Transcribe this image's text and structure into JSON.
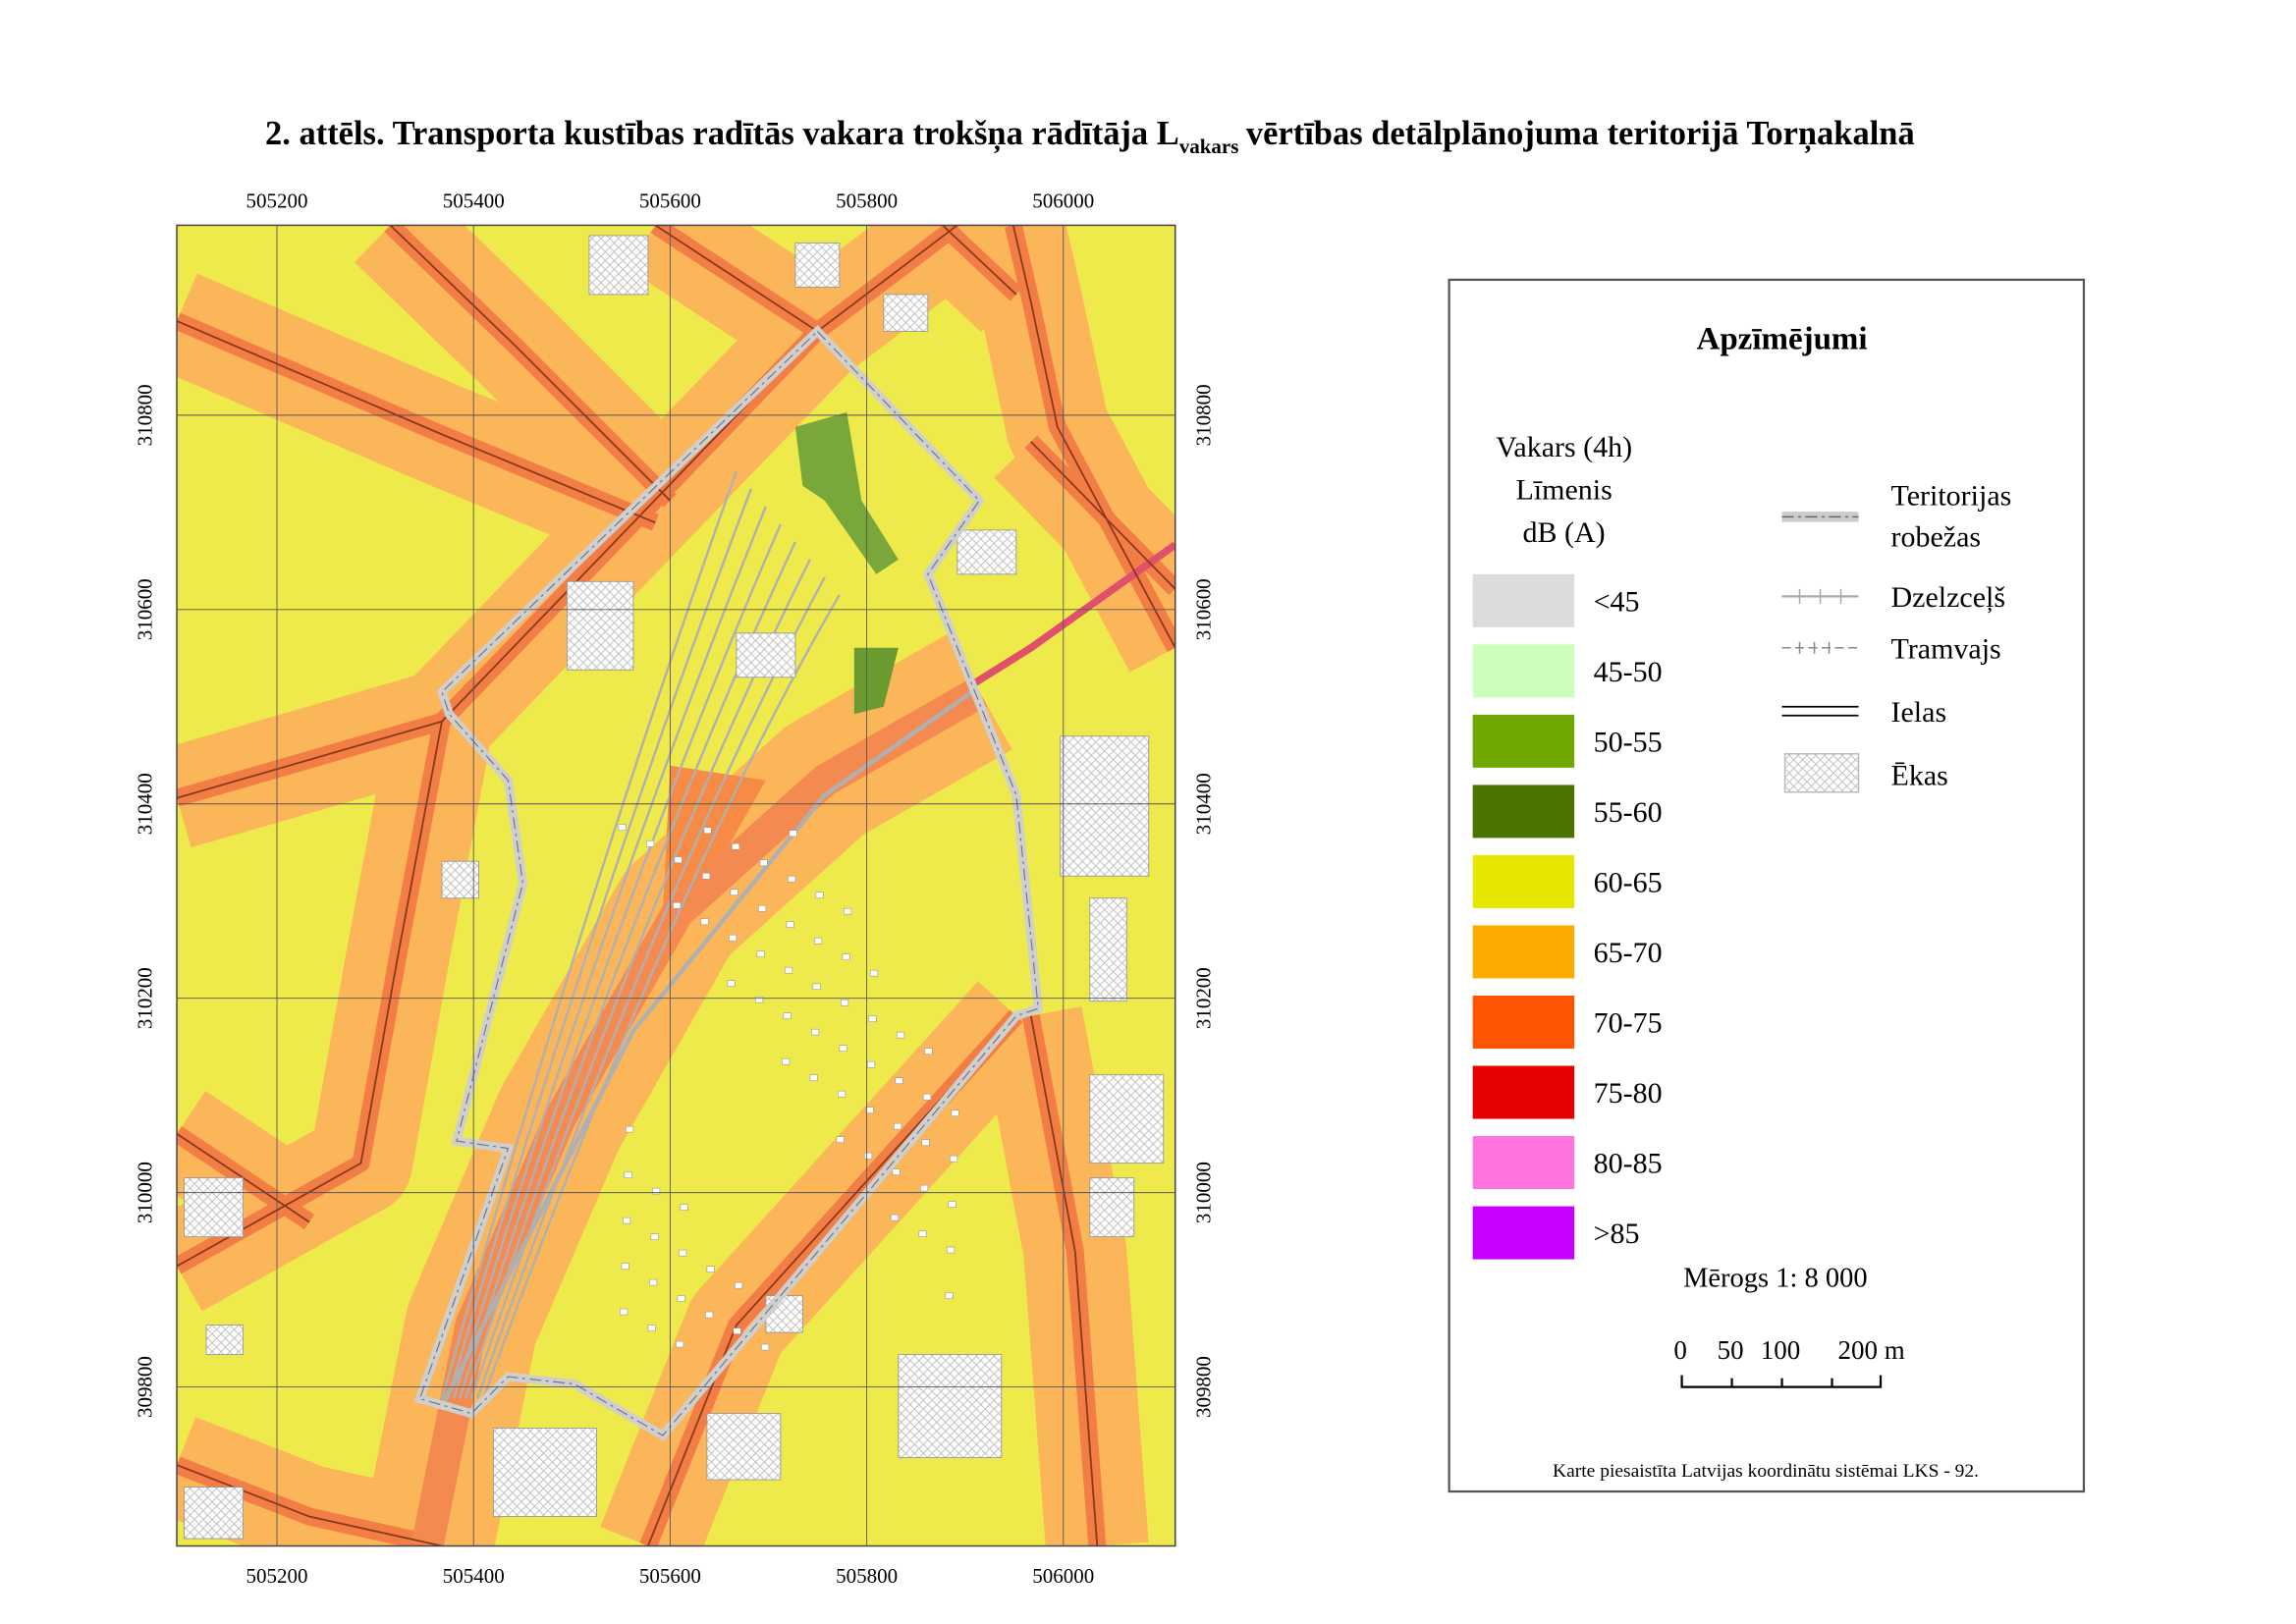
{
  "title": {
    "text": "2. attēls. Transporta kustības radītās vakara trokšņa rādītāja L",
    "subscript": "vakars",
    "text_after": "vērtības detālplānojuma teritorijā Torņakalnā"
  },
  "map": {
    "x_labels": [
      505200,
      505400,
      505600,
      505800,
      506000
    ],
    "y_labels": [
      310800,
      310600,
      310400,
      310200,
      310000,
      309800
    ]
  },
  "legend": {
    "title": "Apzīmējumi",
    "subtitle": [
      "Vakars (4h)",
      "Līmenis",
      "dB (A)"
    ],
    "classes": [
      {
        "label": "<45",
        "color": "#dcdcdc"
      },
      {
        "label": "45-50",
        "color": "#ccffbb"
      },
      {
        "label": "50-55",
        "color": "#70a800"
      },
      {
        "label": "55-60",
        "color": "#4c7300"
      },
      {
        "label": "60-65",
        "color": "#e6e600"
      },
      {
        "label": "65-70",
        "color": "#ffaa00"
      },
      {
        "label": "70-75",
        "color": "#ff5500"
      },
      {
        "label": "75-80",
        "color": "#e60000"
      },
      {
        "label": "80-85",
        "color": "#ff73df"
      },
      {
        "label": ">85",
        "color": "#c500ff"
      }
    ],
    "symbols": [
      {
        "label": [
          "Teritorijas",
          "robežas"
        ]
      },
      {
        "label": [
          "Dzelzceļš"
        ]
      },
      {
        "label": [
          "Tramvajs"
        ]
      },
      {
        "label": [
          "Ielas"
        ]
      },
      {
        "label": [
          "Ēkas"
        ]
      }
    ]
  },
  "scale": {
    "text": "Mērogs 1: 8 000",
    "bar_labels": [
      "0",
      "50",
      "100",
      "200 m"
    ]
  },
  "note": "Karte piesaistīta Latvijas koordinātu sistēmai LKS - 92."
}
